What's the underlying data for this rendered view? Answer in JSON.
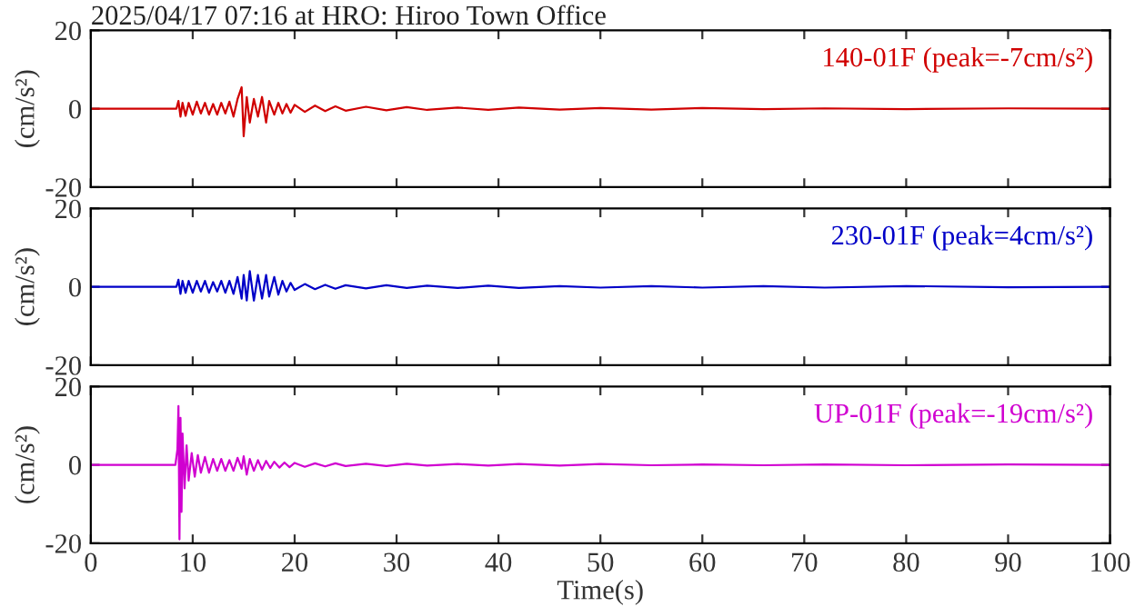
{
  "chart_data": [
    {
      "type": "line",
      "title": "2025/04/17 07:16 at HRO: Hiroo Town Office",
      "ylabel": "(cm/s²)",
      "xlim": [
        0,
        100
      ],
      "ylim": [
        -20,
        20
      ],
      "xticks": [
        0,
        10,
        20,
        30,
        40,
        50,
        60,
        70,
        80,
        90,
        100
      ],
      "yticks": [
        -20,
        0,
        20
      ],
      "tick_labels": "y",
      "grid": false,
      "legend": "top right",
      "x": [
        0,
        8.4,
        8.6,
        8.8,
        9.0,
        9.3,
        9.6,
        10,
        10.4,
        10.8,
        11.2,
        11.6,
        12,
        12.4,
        12.8,
        13.2,
        13.6,
        14,
        14.4,
        14.8,
        15.0,
        15.3,
        15.6,
        16,
        16.4,
        16.8,
        17.2,
        17.5,
        18,
        18.4,
        18.8,
        19.2,
        19.6,
        20,
        21,
        22,
        23,
        24,
        25,
        27,
        29,
        31,
        33,
        36,
        39,
        42,
        46,
        50,
        55,
        60,
        66,
        72,
        80,
        90,
        100
      ],
      "series": [
        {
          "name": "140-01F (peak=-7cm/s²)",
          "color": "#d00000",
          "values": [
            0,
            0,
            2,
            -2,
            1.5,
            -1.8,
            1.5,
            -1.5,
            1.8,
            -1.2,
            1.5,
            -1.5,
            1.2,
            -1.5,
            1.5,
            -1.2,
            1.8,
            -2,
            2.5,
            5.5,
            -7,
            3,
            -3.5,
            2.5,
            -2,
            3,
            -3.5,
            2,
            -1.5,
            1.5,
            -1.2,
            1.2,
            -1,
            1,
            -0.8,
            0.8,
            -0.6,
            0.6,
            -0.5,
            0.5,
            -0.4,
            0.4,
            -0.3,
            0.3,
            -0.3,
            0.3,
            -0.2,
            0.2,
            -0.2,
            0.2,
            -0.1,
            0.1,
            -0.1,
            0.1,
            0
          ]
        }
      ]
    },
    {
      "type": "line",
      "ylabel": "(cm/s²)",
      "xlim": [
        0,
        100
      ],
      "ylim": [
        -20,
        20
      ],
      "xticks": [
        0,
        10,
        20,
        30,
        40,
        50,
        60,
        70,
        80,
        90,
        100
      ],
      "yticks": [
        -20,
        0,
        20
      ],
      "tick_labels": "y",
      "grid": false,
      "legend": "top right",
      "x": [
        0,
        8.4,
        8.6,
        8.8,
        9.0,
        9.3,
        9.6,
        10,
        10.4,
        10.8,
        11.2,
        11.6,
        12,
        12.4,
        12.8,
        13.2,
        13.6,
        14,
        14.4,
        14.8,
        15.0,
        15.3,
        15.6,
        16,
        16.4,
        16.8,
        17.2,
        17.5,
        18,
        18.4,
        18.8,
        19.2,
        19.6,
        20,
        21,
        22,
        23,
        24,
        25,
        27,
        29,
        31,
        33,
        36,
        39,
        42,
        46,
        50,
        55,
        60,
        66,
        72,
        80,
        90,
        100
      ],
      "series": [
        {
          "name": "230-01F (peak=4cm/s²)",
          "color": "#0000c8",
          "values": [
            0,
            0,
            1.8,
            -1.8,
            1.5,
            -1.5,
            1.5,
            -1.5,
            1.5,
            -1.2,
            1.5,
            -1.5,
            1.2,
            -1.2,
            1.5,
            -1.5,
            1.5,
            -1.8,
            2.5,
            -3,
            3,
            -3.5,
            4,
            -3.5,
            3,
            -3,
            3,
            -2.5,
            2.5,
            -2,
            1.5,
            -1.2,
            1,
            -0.8,
            0.7,
            -0.6,
            0.5,
            -0.5,
            0.4,
            -0.4,
            0.4,
            -0.3,
            0.3,
            -0.3,
            0.3,
            -0.3,
            0.2,
            -0.2,
            0.2,
            -0.2,
            0.2,
            -0.2,
            0.2,
            -0.1,
            0
          ]
        }
      ]
    },
    {
      "type": "line",
      "xlabel": "Time(s)",
      "ylabel": "(cm/s²)",
      "xlim": [
        0,
        100
      ],
      "ylim": [
        -20,
        20
      ],
      "xticks": [
        0,
        10,
        20,
        30,
        40,
        50,
        60,
        70,
        80,
        90,
        100
      ],
      "yticks": [
        -20,
        0,
        20
      ],
      "grid": false,
      "legend": "top right",
      "x": [
        0,
        8.3,
        8.5,
        8.6,
        8.7,
        8.8,
        8.9,
        9.0,
        9.2,
        9.4,
        9.6,
        9.9,
        10.2,
        10.5,
        10.8,
        11.2,
        11.6,
        12,
        12.4,
        12.8,
        13.2,
        13.6,
        14,
        14.4,
        14.8,
        15.0,
        15.3,
        15.6,
        16,
        16.4,
        16.8,
        17.2,
        17.6,
        18,
        18.5,
        19,
        19.5,
        20,
        21,
        22,
        23,
        24,
        25,
        27,
        29,
        31,
        33,
        36,
        39,
        42,
        46,
        50,
        55,
        60,
        66,
        72,
        80,
        90,
        100
      ],
      "series": [
        {
          "name": "UP-01F (peak=-19cm/s²)",
          "color": "#d000d0",
          "values": [
            0,
            0,
            4,
            15,
            -19,
            12,
            -12,
            8,
            -6,
            5,
            -4,
            3,
            -3,
            2.5,
            -2,
            2,
            -2,
            1.5,
            -1.5,
            1.5,
            -1.5,
            1.2,
            -1.5,
            1.8,
            -1,
            2.2,
            -2.5,
            1.5,
            -1.5,
            1.2,
            -1.2,
            1,
            -0.8,
            0.8,
            -0.7,
            0.6,
            -0.6,
            0.5,
            -0.5,
            0.4,
            -0.4,
            0.4,
            -0.3,
            0.3,
            -0.3,
            0.3,
            -0.2,
            0.2,
            -0.2,
            0.2,
            -0.2,
            0.2,
            -0.1,
            0.1,
            -0.1,
            0.1,
            -0.1,
            0.1,
            0
          ]
        }
      ]
    }
  ]
}
